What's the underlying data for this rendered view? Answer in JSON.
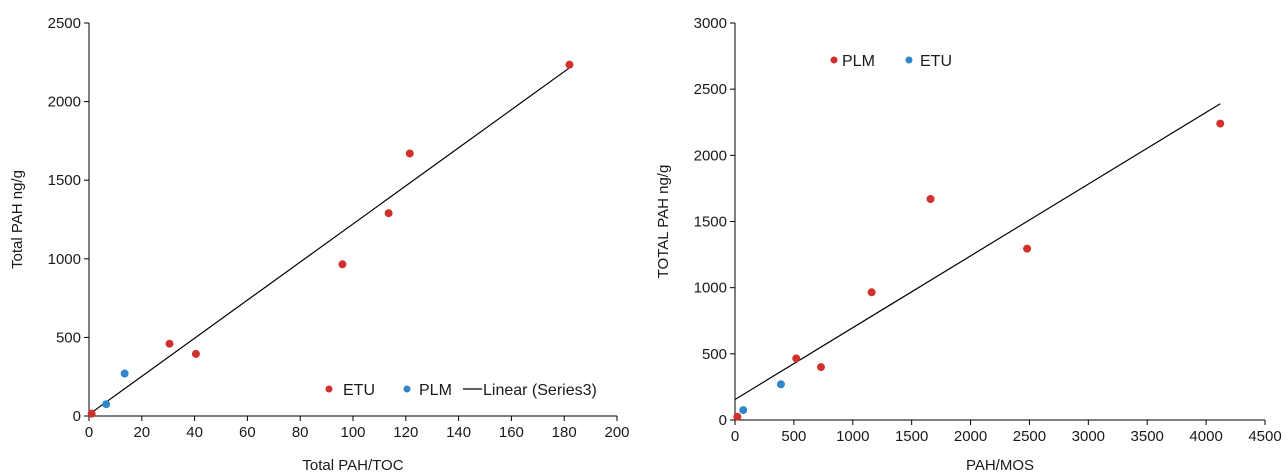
{
  "colors": {
    "etu": "#d0312d",
    "plm": "#2f86c8",
    "trendline": "#000000",
    "axis": "#000000"
  },
  "chart_data": [
    {
      "type": "scatter",
      "title": "",
      "xlabel": "Total PAH/TOC",
      "ylabel": "Total PAH ng/g",
      "xlim": [
        0,
        200
      ],
      "ylim": [
        0,
        2500
      ],
      "xticks": [
        0,
        20,
        40,
        60,
        80,
        100,
        120,
        140,
        160,
        180,
        200
      ],
      "yticks": [
        0,
        500,
        1000,
        1500,
        2000,
        2500
      ],
      "grid": false,
      "legend_position": "bottom-right",
      "legend": [
        "ETU",
        "PLM",
        "Linear (Series3)"
      ],
      "series": [
        {
          "name": "ETU",
          "color": "#d0312d",
          "points": [
            [
              1,
              15
            ],
            [
              30.5,
              460
            ],
            [
              40.5,
              395
            ],
            [
              96,
              965
            ],
            [
              113.5,
              1290
            ],
            [
              121.5,
              1670
            ],
            [
              182,
              2235
            ]
          ]
        },
        {
          "name": "PLM",
          "color": "#2f86c8",
          "points": [
            [
              6.5,
              75
            ],
            [
              13.5,
              270
            ]
          ]
        }
      ],
      "trendline": {
        "name": "Linear (Series3)",
        "x": [
          0,
          182
        ],
        "y": [
          10,
          2215
        ]
      }
    },
    {
      "type": "scatter",
      "title": "",
      "xlabel": "PAH/MOS",
      "ylabel": "TOTAL PAH ng/g",
      "xlim": [
        0,
        4500
      ],
      "ylim": [
        0,
        3000
      ],
      "xticks": [
        0,
        500,
        1000,
        1500,
        2000,
        2500,
        3000,
        3500,
        4000,
        4500
      ],
      "yticks": [
        0,
        500,
        1000,
        1500,
        2000,
        2500,
        3000
      ],
      "grid": false,
      "legend_position": "top-left",
      "legend": [
        "PLM",
        "ETU"
      ],
      "series": [
        {
          "name": "PLM",
          "color": "#d0312d",
          "points": [
            [
              20,
              25
            ],
            [
              520,
              465
            ],
            [
              730,
              400
            ],
            [
              1160,
              965
            ],
            [
              1660,
              1670
            ],
            [
              2480,
              1295
            ],
            [
              4120,
              2240
            ]
          ]
        },
        {
          "name": "ETU",
          "color": "#2f86c8",
          "points": [
            [
              70,
              75
            ],
            [
              390,
              270
            ]
          ]
        }
      ],
      "trendline": {
        "name": "",
        "x": [
          0,
          4120
        ],
        "y": [
          155,
          2390
        ]
      }
    }
  ]
}
